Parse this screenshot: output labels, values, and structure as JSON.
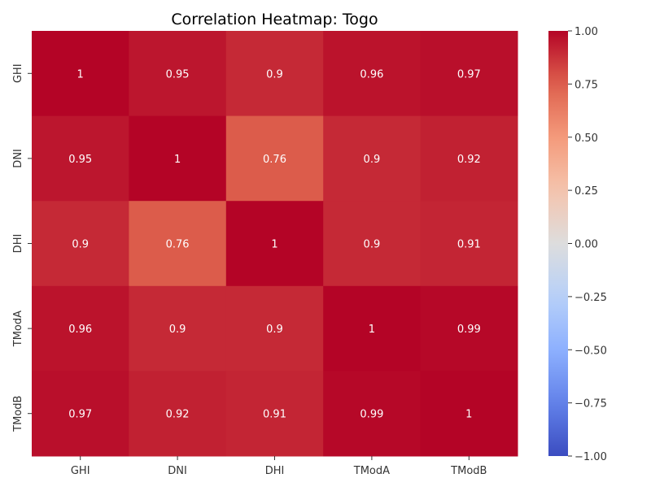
{
  "chart_data": {
    "type": "heatmap",
    "title": "Correlation Heatmap: Togo",
    "xlabel": "",
    "ylabel": "",
    "x_categories": [
      "GHI",
      "DNI",
      "DHI",
      "TModA",
      "TModB"
    ],
    "y_categories": [
      "GHI",
      "DNI",
      "DHI",
      "TModA",
      "TModB"
    ],
    "values": [
      [
        1,
        0.95,
        0.9,
        0.96,
        0.97
      ],
      [
        0.95,
        1,
        0.76,
        0.9,
        0.92
      ],
      [
        0.9,
        0.76,
        1,
        0.9,
        0.91
      ],
      [
        0.96,
        0.9,
        0.9,
        1,
        0.99
      ],
      [
        0.97,
        0.92,
        0.91,
        0.99,
        1
      ]
    ],
    "cell_labels": [
      [
        "1",
        "0.95",
        "0.9",
        "0.96",
        "0.97"
      ],
      [
        "0.95",
        "1",
        "0.76",
        "0.9",
        "0.92"
      ],
      [
        "0.9",
        "0.76",
        "1",
        "0.9",
        "0.91"
      ],
      [
        "0.96",
        "0.9",
        "0.9",
        "1",
        "0.99"
      ],
      [
        "0.97",
        "0.92",
        "0.91",
        "0.99",
        "1"
      ]
    ],
    "colorbar": {
      "range": [
        -1,
        1
      ],
      "ticks": [
        1,
        0.75,
        0.5,
        0.25,
        0,
        -0.25,
        -0.5,
        -0.75,
        -1
      ],
      "tick_labels": [
        "1.00",
        "0.75",
        "0.50",
        "0.25",
        "0.00",
        "−0.25",
        "−0.50",
        "−0.75",
        "−1.00"
      ],
      "colormap": "coolwarm",
      "colors": {
        "low": "#3b4cc0",
        "mid": "#dddddd",
        "high": "#b40426"
      }
    },
    "grid": false
  }
}
